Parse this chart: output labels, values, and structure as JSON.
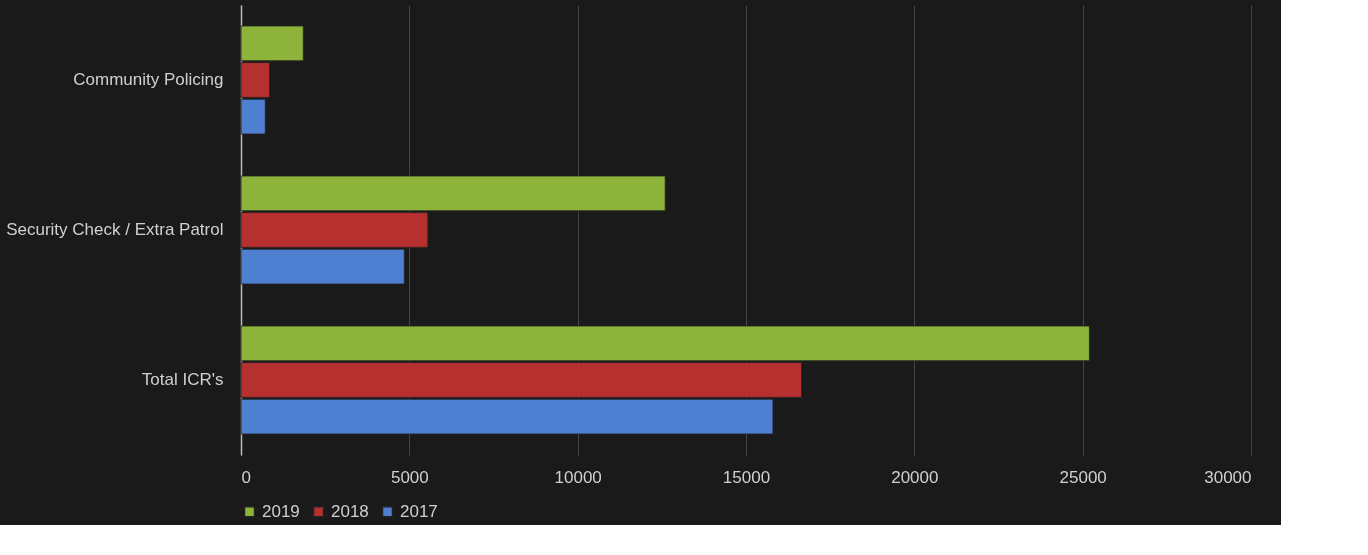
{
  "chart_data": {
    "type": "bar",
    "orientation": "horizontal",
    "categories": [
      "Community Policing",
      "Security Check / Extra Patrol",
      "Total ICR's"
    ],
    "series": [
      {
        "name": "2019",
        "color": "#8db33a",
        "values": [
          1850,
          12600,
          25200
        ]
      },
      {
        "name": "2018",
        "color": "#b5302f",
        "values": [
          850,
          5550,
          16650
        ]
      },
      {
        "name": "2017",
        "color": "#4f7fd0",
        "values": [
          720,
          4850,
          15800
        ]
      }
    ],
    "xlim": [
      0,
      30000
    ],
    "xticks": [
      0,
      5000,
      10000,
      15000,
      20000,
      25000,
      30000
    ],
    "grid": "x",
    "legend": "bottom"
  }
}
